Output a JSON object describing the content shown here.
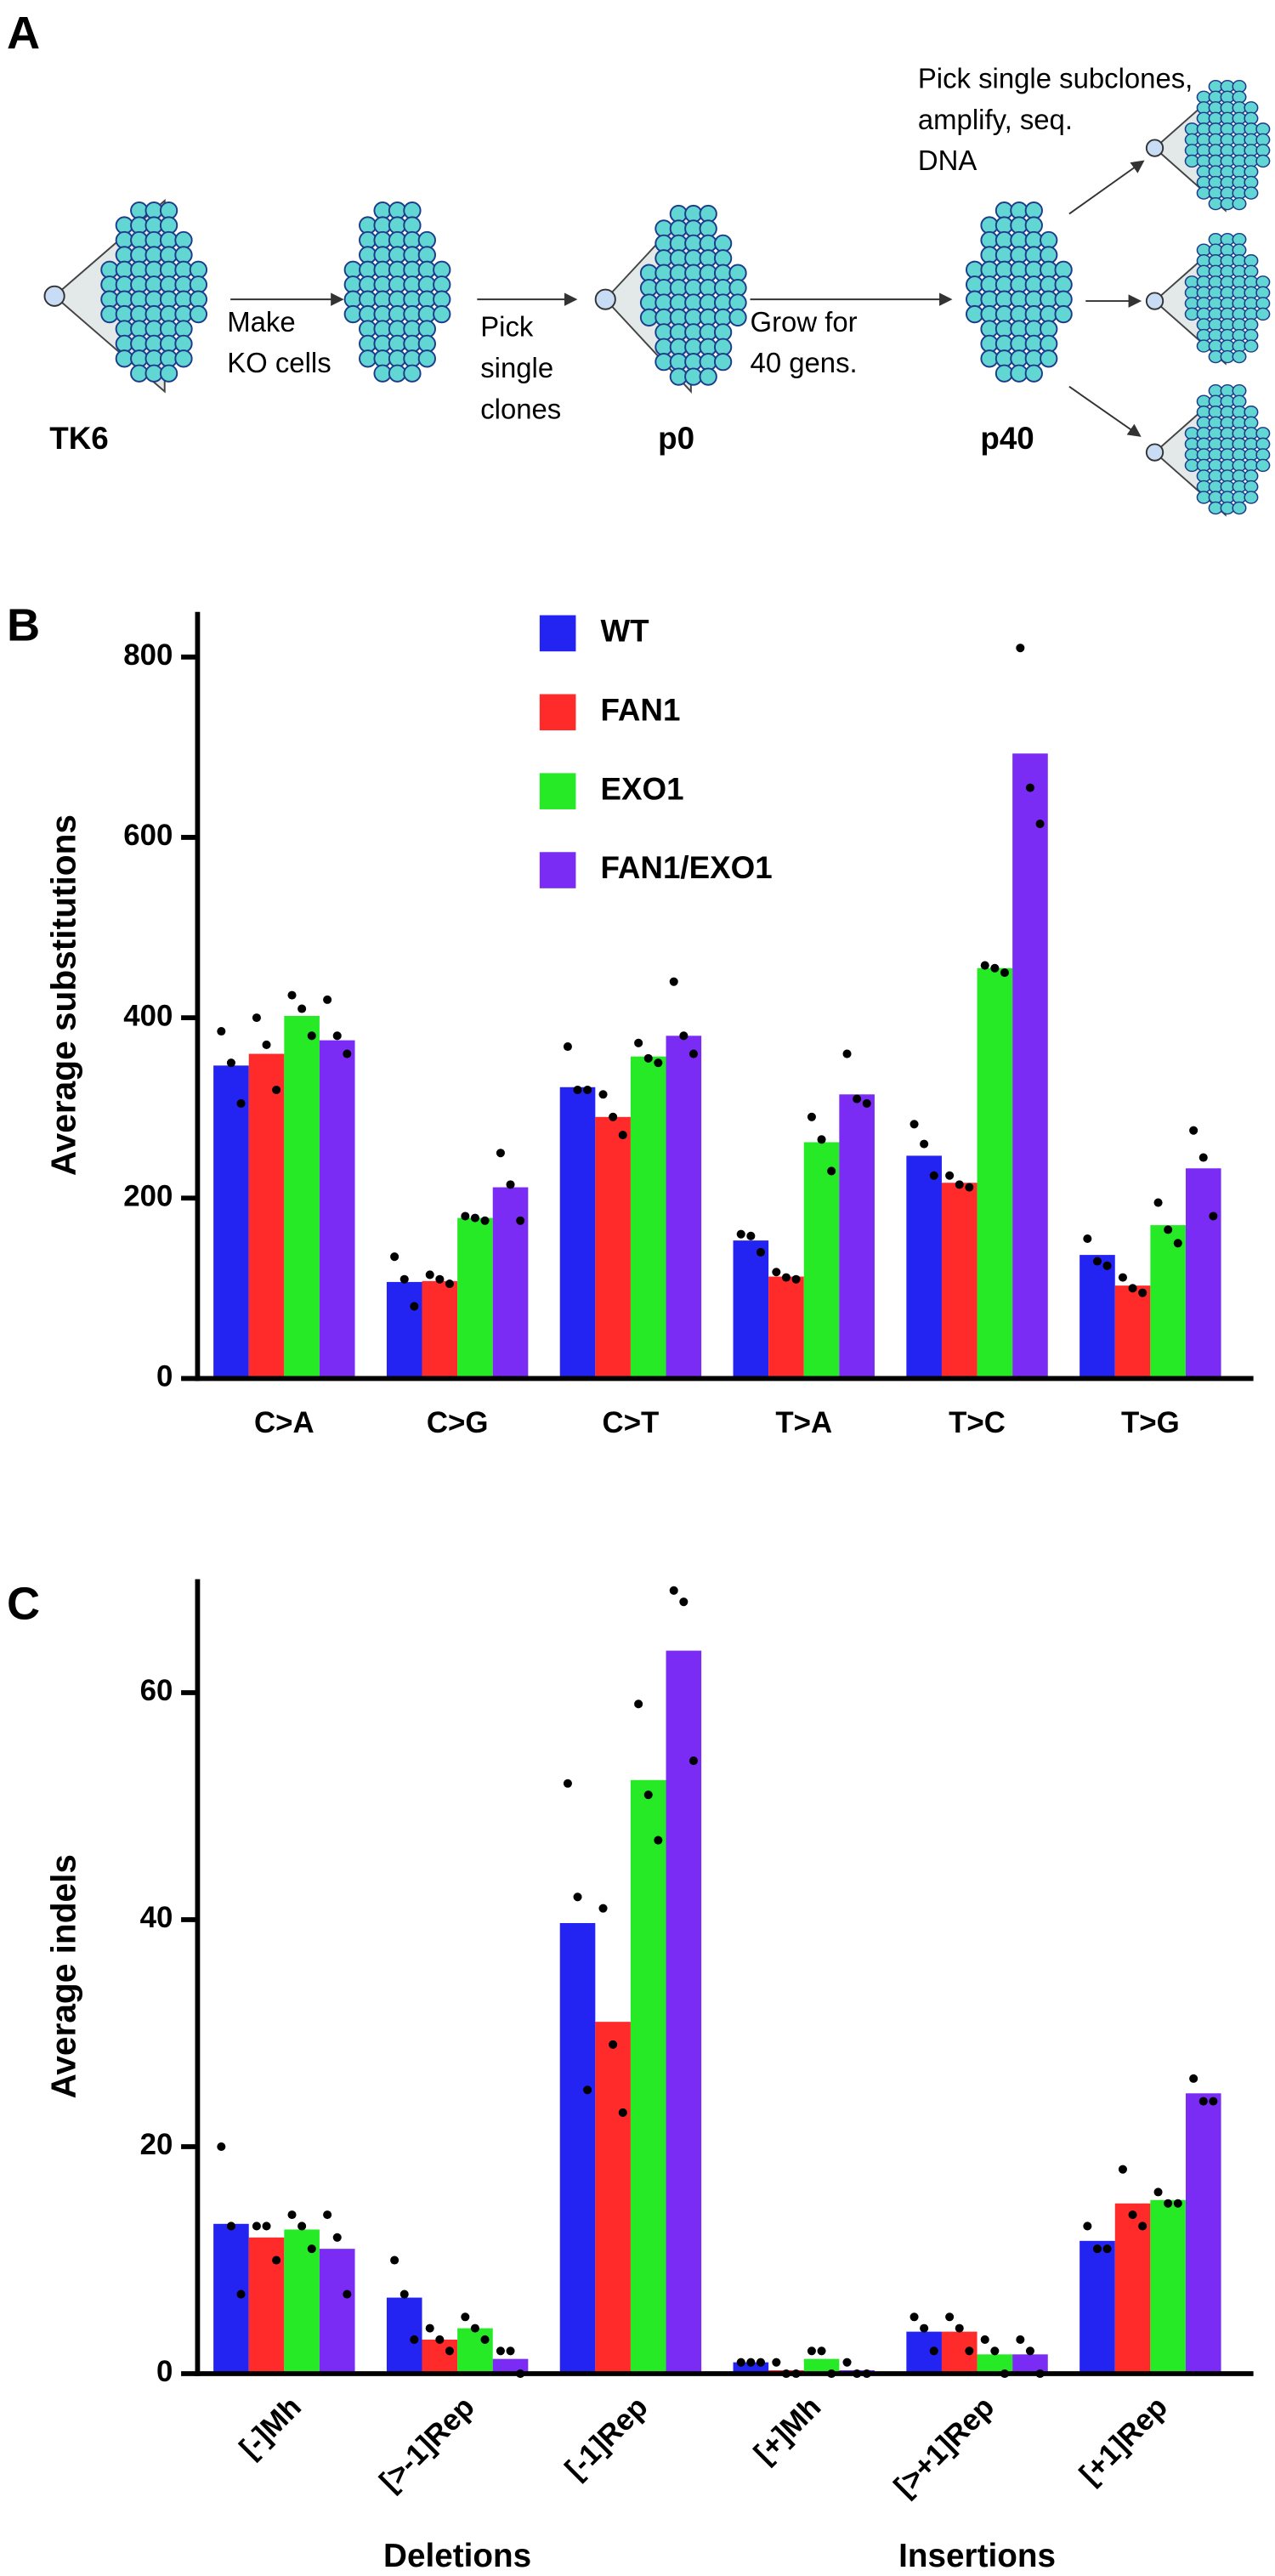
{
  "panel_a": {
    "label": "A",
    "stages": [
      "TK6",
      "p0",
      "p40"
    ],
    "steps": [
      [
        "Make",
        "KO cells"
      ],
      [
        "Pick",
        "single",
        "clones"
      ],
      [
        "Grow for",
        "40 gens."
      ],
      [
        "Pick single subclones,",
        "amplify, seq.",
        "DNA"
      ]
    ]
  },
  "chart_data": [
    {
      "type": "bar",
      "panel_label": "B",
      "ylabel": "Average substitutions",
      "categories": [
        "C>A",
        "C>G",
        "C>T",
        "T>A",
        "T>C",
        "T>G"
      ],
      "series": [
        {
          "name": "WT",
          "color": "#2323f2",
          "values": [
            347,
            107,
            323,
            153,
            247,
            137
          ],
          "points": [
            [
              385,
              350,
              305
            ],
            [
              135,
              110,
              80
            ],
            [
              368,
              320,
              320
            ],
            [
              160,
              158,
              140
            ],
            [
              282,
              260,
              225
            ],
            [
              155,
              130,
              125
            ]
          ]
        },
        {
          "name": "FAN1",
          "color": "#ff2b2b",
          "values": [
            360,
            108,
            290,
            113,
            217,
            103
          ],
          "points": [
            [
              400,
              370,
              320
            ],
            [
              115,
              110,
              105
            ],
            [
              315,
              290,
              270
            ],
            [
              118,
              112,
              110
            ],
            [
              225,
              215,
              212
            ],
            [
              112,
              100,
              95
            ]
          ]
        },
        {
          "name": "EXO1",
          "color": "#26ea26",
          "values": [
            402,
            178,
            357,
            262,
            455,
            170
          ],
          "points": [
            [
              425,
              410,
              380
            ],
            [
              180,
              178,
              175
            ],
            [
              372,
              355,
              350
            ],
            [
              290,
              265,
              230
            ],
            [
              458,
              455,
              450
            ],
            [
              195,
              165,
              150
            ]
          ]
        },
        {
          "name": "FAN1/EXO1",
          "color": "#7a2cf4",
          "values": [
            375,
            212,
            380,
            315,
            693,
            233
          ],
          "points": [
            [
              420,
              380,
              360
            ],
            [
              250,
              215,
              175
            ],
            [
              440,
              380,
              360
            ],
            [
              360,
              310,
              305
            ],
            [
              810,
              655,
              615
            ],
            [
              275,
              245,
              180
            ]
          ]
        }
      ],
      "ylim": [
        0,
        850
      ],
      "yticks": [
        0,
        200,
        400,
        600,
        800
      ],
      "legend": "top"
    },
    {
      "type": "bar",
      "panel_label": "C",
      "ylabel": "Average indels",
      "categories": [
        "[-]Mh",
        "[>-1]Rep",
        "[-1]Rep",
        "[+]Mh",
        "[>+1]Rep",
        "[+1]Rep"
      ],
      "group_labels": [
        "Deletions",
        "Insertions"
      ],
      "series": [
        {
          "color": "#2323f2",
          "values": [
            13.2,
            6.7,
            39.7,
            1.0,
            3.7,
            11.7
          ],
          "points": [
            [
              20,
              13,
              7
            ],
            [
              10,
              7,
              3
            ],
            [
              52,
              42,
              25
            ],
            [
              1,
              1,
              1
            ],
            [
              5,
              4,
              2
            ],
            [
              13,
              11,
              11
            ]
          ]
        },
        {
          "color": "#ff2b2b",
          "values": [
            12,
            3.0,
            31,
            0.3,
            3.7,
            15
          ],
          "points": [
            [
              13,
              13,
              10
            ],
            [
              4,
              3,
              2
            ],
            [
              41,
              29,
              23
            ],
            [
              1,
              0,
              0
            ],
            [
              5,
              4,
              2
            ],
            [
              18,
              14,
              13
            ]
          ]
        },
        {
          "color": "#26ea26",
          "values": [
            12.7,
            4.0,
            52.3,
            1.3,
            1.7,
            15.3
          ],
          "points": [
            [
              14,
              13,
              11
            ],
            [
              5,
              4,
              3
            ],
            [
              59,
              51,
              47
            ],
            [
              2,
              2,
              0
            ],
            [
              3,
              2,
              0
            ],
            [
              16,
              15,
              15
            ]
          ]
        },
        {
          "color": "#7a2cf4",
          "values": [
            11,
            1.3,
            63.7,
            0.3,
            1.7,
            24.7
          ],
          "points": [
            [
              14,
              12,
              7
            ],
            [
              2,
              2,
              0
            ],
            [
              69,
              68,
              54
            ],
            [
              1,
              0,
              0
            ],
            [
              3,
              2,
              0
            ],
            [
              26,
              24,
              24
            ]
          ]
        }
      ],
      "ylim": [
        0,
        70
      ],
      "yticks": [
        0,
        20,
        40,
        60
      ]
    }
  ]
}
